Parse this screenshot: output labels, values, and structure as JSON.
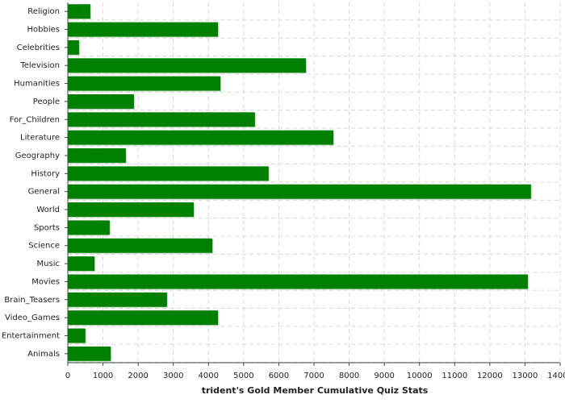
{
  "chart_data": {
    "type": "barh",
    "xlabel": "trident's Gold Member Cumulative Quiz Stats",
    "categories": [
      "Religion",
      "Hobbies",
      "Celebrities",
      "Television",
      "Humanities",
      "People",
      "For_Children",
      "Literature",
      "Geography",
      "History",
      "General",
      "World",
      "Sports",
      "Science",
      "Music",
      "Movies",
      "Brain_Teasers",
      "Video_Games",
      "Entertainment",
      "Animals"
    ],
    "values": [
      640,
      4270,
      320,
      6770,
      4340,
      1880,
      5320,
      7550,
      1650,
      5710,
      13170,
      3580,
      1190,
      4110,
      760,
      13080,
      2820,
      4270,
      500,
      1220
    ],
    "color": "#008000",
    "xlim": [
      0,
      14000
    ],
    "xticks": [
      0,
      1000,
      2000,
      3000,
      4000,
      5000,
      6000,
      7000,
      8000,
      9000,
      10000,
      11000,
      12000,
      13000,
      14000
    ],
    "grid": true
  }
}
